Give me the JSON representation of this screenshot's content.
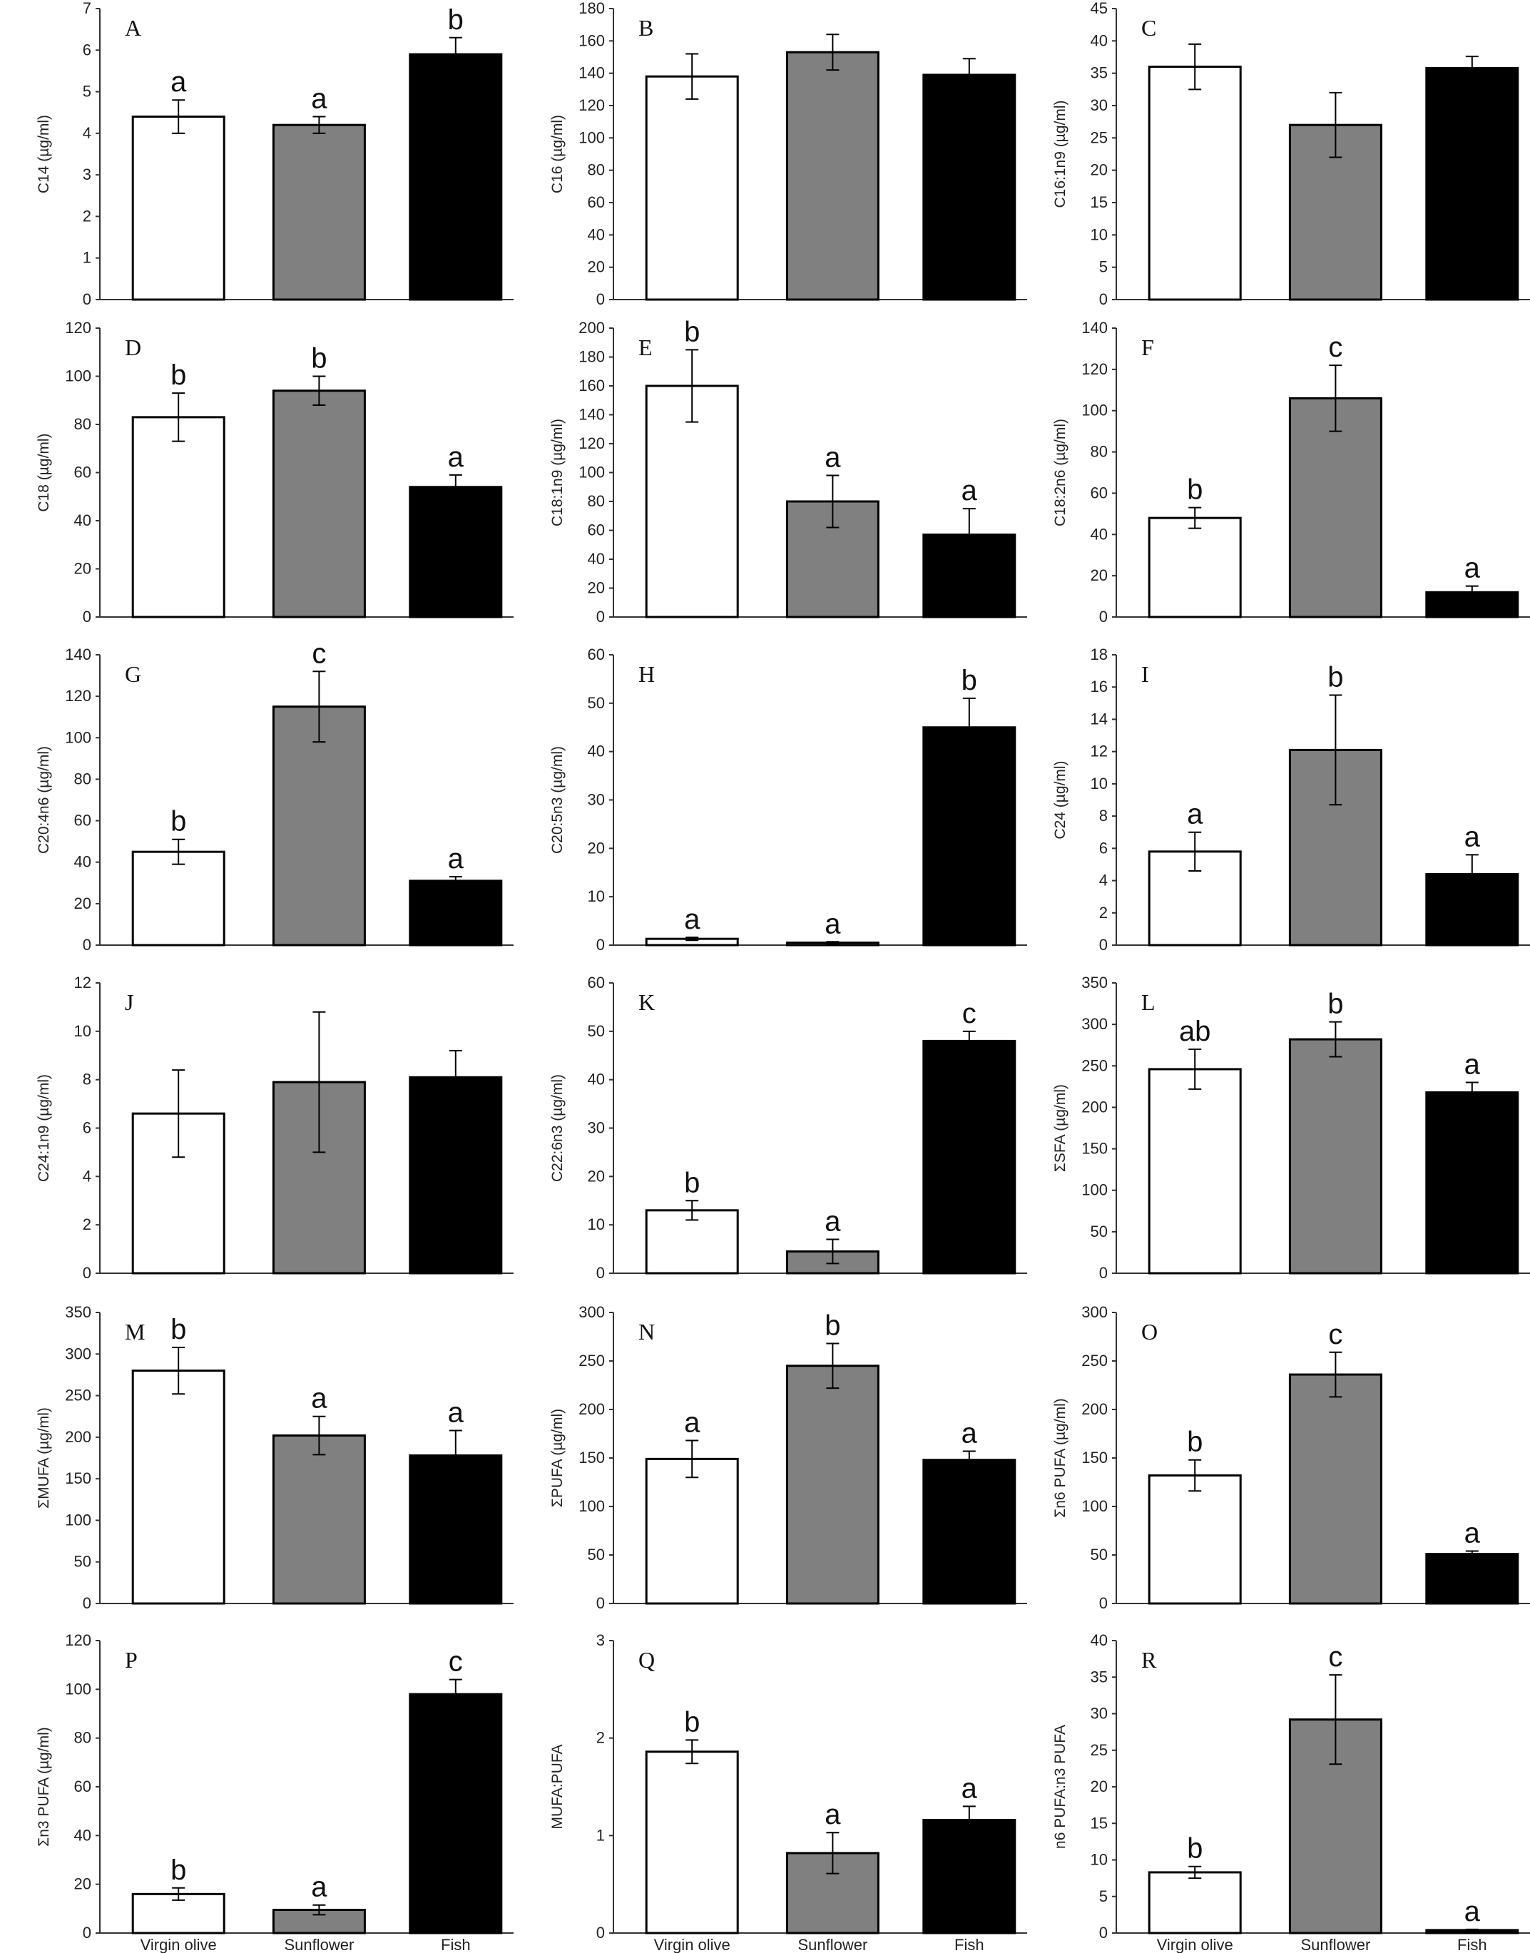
{
  "chart_data": [
    {
      "panel": "A",
      "type": "bar",
      "ylabel": "C14 (µg/ml)",
      "ylim": [
        0,
        7
      ],
      "step": 1,
      "values": [
        4.4,
        4.2,
        5.9
      ],
      "errors": [
        0.4,
        0.2,
        0.4
      ],
      "sig": [
        "a",
        "a",
        "b"
      ]
    },
    {
      "panel": "B",
      "type": "bar",
      "ylabel": "C16 (µg/ml)",
      "ylim": [
        0,
        180
      ],
      "step": 20,
      "values": [
        138,
        153,
        139
      ],
      "errors": [
        14,
        11,
        10
      ],
      "sig": [
        "",
        "",
        ""
      ]
    },
    {
      "panel": "C",
      "type": "bar",
      "ylabel": "C16:1n9 (µg/ml)",
      "ylim": [
        0,
        45
      ],
      "step": 5,
      "values": [
        36,
        27,
        35.8
      ],
      "errors": [
        3.5,
        5,
        1.8
      ],
      "sig": [
        "",
        "",
        ""
      ]
    },
    {
      "panel": "D",
      "type": "bar",
      "ylabel": "C18 (µg/ml)",
      "ylim": [
        0,
        120
      ],
      "step": 20,
      "values": [
        83,
        94,
        54
      ],
      "errors": [
        10,
        6,
        5
      ],
      "sig": [
        "b",
        "b",
        "a"
      ]
    },
    {
      "panel": "E",
      "type": "bar",
      "ylabel": "C18:1n9 (µg/ml)",
      "ylim": [
        0,
        200
      ],
      "step": 20,
      "values": [
        160,
        80,
        57
      ],
      "errors": [
        25,
        18,
        18
      ],
      "sig": [
        "b",
        "a",
        "a"
      ]
    },
    {
      "panel": "F",
      "type": "bar",
      "ylabel": "C18:2n6 (µg/ml)",
      "ylim": [
        0,
        140
      ],
      "step": 20,
      "values": [
        48,
        106,
        12
      ],
      "errors": [
        5,
        16,
        3
      ],
      "sig": [
        "b",
        "c",
        "a"
      ]
    },
    {
      "panel": "G",
      "type": "bar",
      "ylabel": "C20:4n6 (µg/ml)",
      "ylim": [
        0,
        140
      ],
      "step": 20,
      "values": [
        45,
        115,
        31
      ],
      "errors": [
        6,
        17,
        2
      ],
      "sig": [
        "b",
        "c",
        "a"
      ]
    },
    {
      "panel": "H",
      "type": "bar",
      "ylabel": "C20:5n3 (µg/ml)",
      "ylim": [
        0,
        60
      ],
      "step": 10,
      "values": [
        1.3,
        0.5,
        45
      ],
      "errors": [
        0.3,
        0.2,
        6
      ],
      "sig": [
        "a",
        "a",
        "b"
      ]
    },
    {
      "panel": "I",
      "type": "bar",
      "ylabel": "C24 (µg/ml)",
      "ylim": [
        0,
        18
      ],
      "step": 2,
      "values": [
        5.8,
        12.1,
        4.4
      ],
      "errors": [
        1.2,
        3.4,
        1.2
      ],
      "sig": [
        "a",
        "b",
        "a"
      ]
    },
    {
      "panel": "J",
      "type": "bar",
      "ylabel": "C24:1n9 (µg/ml)",
      "ylim": [
        0,
        12
      ],
      "step": 2,
      "values": [
        6.6,
        7.9,
        8.1
      ],
      "errors": [
        1.8,
        2.9,
        1.1
      ],
      "sig": [
        "",
        "",
        ""
      ]
    },
    {
      "panel": "K",
      "type": "bar",
      "ylabel": "C22:6n3 (µg/ml)",
      "ylim": [
        0,
        60
      ],
      "step": 10,
      "values": [
        13,
        4.5,
        48
      ],
      "errors": [
        2,
        2.5,
        2
      ],
      "sig": [
        "b",
        "a",
        "c"
      ]
    },
    {
      "panel": "L",
      "type": "bar",
      "ylabel": "ΣSFA (µg/ml)",
      "ylim": [
        0,
        350
      ],
      "step": 50,
      "values": [
        246,
        282,
        218
      ],
      "errors": [
        24,
        21,
        12
      ],
      "sig": [
        "ab",
        "b",
        "a"
      ]
    },
    {
      "panel": "M",
      "type": "bar",
      "ylabel": "ΣMUFA (µg/ml)",
      "ylim": [
        0,
        350
      ],
      "step": 50,
      "values": [
        280,
        202,
        178
      ],
      "errors": [
        28,
        23,
        30
      ],
      "sig": [
        "b",
        "a",
        "a"
      ]
    },
    {
      "panel": "N",
      "type": "bar",
      "ylabel": "ΣPUFA (µg/ml)",
      "ylim": [
        0,
        300
      ],
      "step": 50,
      "values": [
        149,
        245,
        148
      ],
      "errors": [
        19,
        23,
        9
      ],
      "sig": [
        "a",
        "b",
        "a"
      ]
    },
    {
      "panel": "O",
      "type": "bar",
      "ylabel": "Σn6 PUFA (µg/ml)",
      "ylim": [
        0,
        300
      ],
      "step": 50,
      "values": [
        132,
        236,
        51
      ],
      "errors": [
        16,
        23,
        3
      ],
      "sig": [
        "b",
        "c",
        "a"
      ]
    },
    {
      "panel": "P",
      "type": "bar",
      "ylabel": "Σn3 PUFA (µg/ml)",
      "ylim": [
        0,
        120
      ],
      "step": 20,
      "values": [
        16,
        9.5,
        98
      ],
      "errors": [
        2.5,
        2,
        6
      ],
      "sig": [
        "b",
        "a",
        "c"
      ]
    },
    {
      "panel": "Q",
      "type": "bar",
      "ylabel": "MUFA:PUFA",
      "ylim": [
        0,
        3
      ],
      "step": 1,
      "values": [
        1.86,
        0.82,
        1.16
      ],
      "errors": [
        0.12,
        0.21,
        0.14
      ],
      "sig": [
        "b",
        "a",
        "a"
      ]
    },
    {
      "panel": "R",
      "type": "bar",
      "ylabel": "n6 PUFA:n3 PUFA",
      "ylim": [
        0,
        40
      ],
      "step": 5,
      "values": [
        8.3,
        29.2,
        0.4
      ],
      "errors": [
        0.8,
        6.1,
        0.1
      ],
      "sig": [
        "b",
        "c",
        "a"
      ]
    }
  ],
  "categories": [
    "Virgin olive",
    "Sunflower",
    "Fish"
  ],
  "bar_colors": [
    "#ffffff",
    "#808080",
    "#000000"
  ]
}
